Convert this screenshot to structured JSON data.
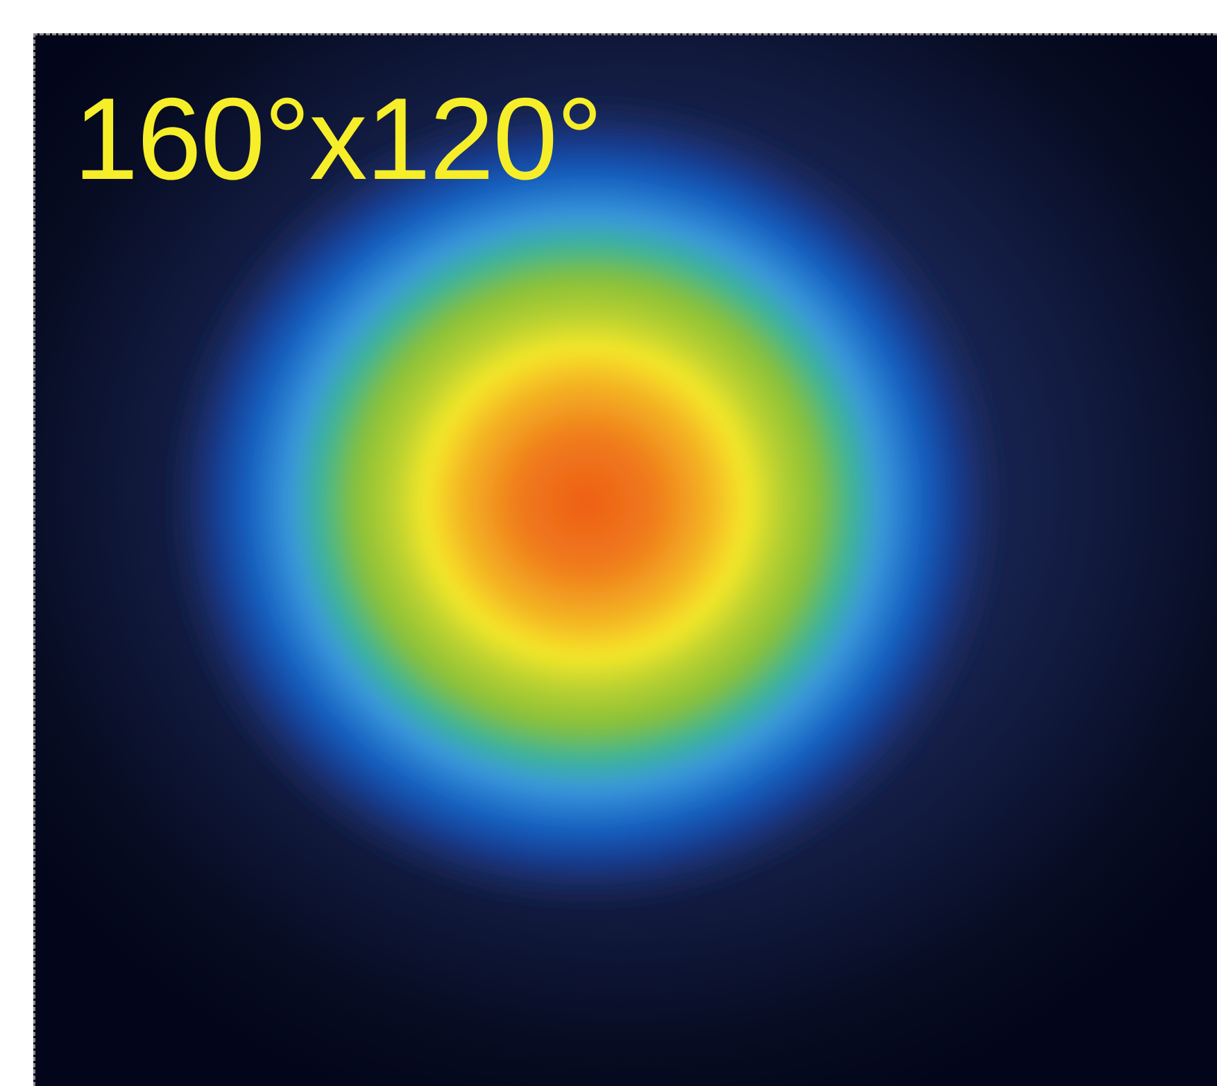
{
  "image": {
    "label": "160°x120°",
    "label_color": "#f7ee2a",
    "colormap": [
      "#03061a",
      "#1c2a5c",
      "#0d4fb0",
      "#3a98dc",
      "#2db8a0",
      "#8cc23a",
      "#f5e82a",
      "#f4a020",
      "#ee6418"
    ]
  }
}
